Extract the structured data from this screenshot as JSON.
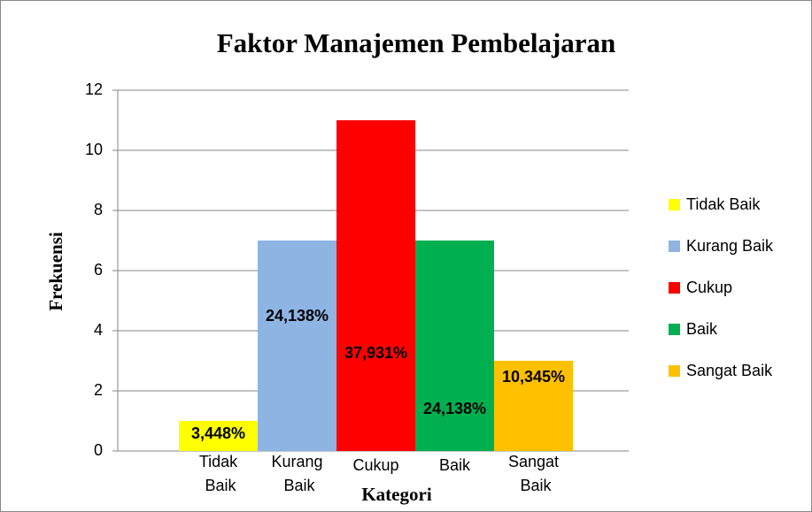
{
  "chart_data": {
    "type": "bar",
    "title": "Faktor Manajemen Pembelajaran",
    "x_label": "Kategori",
    "y_label": "Frekuensi",
    "categories": [
      "Tidak Baik",
      "Kurang Baik",
      "Cukup",
      "Baik",
      "Sangat Baik"
    ],
    "values": [
      1,
      7,
      11,
      7,
      3
    ],
    "data_labels": [
      "3,448%",
      "24,138%",
      "37,931%",
      "24,138%",
      "10,345%"
    ],
    "colors": [
      "#ffff00",
      "#8eb4e3",
      "#ff0000",
      "#00b050",
      "#ffc000"
    ],
    "ylim": [
      0,
      12
    ],
    "yticks": [
      0,
      2,
      4,
      6,
      8,
      10,
      12
    ],
    "grid": true,
    "legend": "right"
  }
}
